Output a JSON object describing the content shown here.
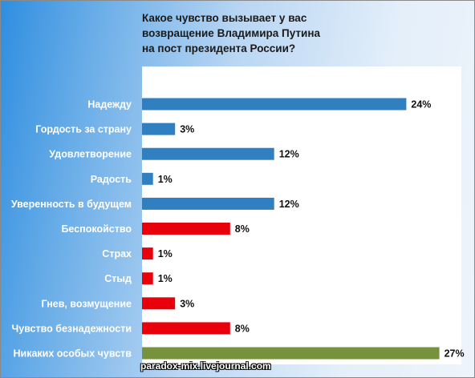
{
  "chart_data": {
    "type": "bar",
    "orientation": "horizontal",
    "title_lines": [
      "Какое чувство вызывает у вас",
      "возвращение Владимира Путина",
      "на пост президента России?"
    ],
    "categories": [
      "Надежду",
      "Гордость за страну",
      "Удовлетворение",
      "Радость",
      "Уверенность в будущем",
      "Беспокойство",
      "Страх",
      "Стыд",
      "Гнев, возмущение",
      "Чувство безнадежности",
      "Никаких особых чувств"
    ],
    "values": [
      24,
      3,
      12,
      1,
      12,
      8,
      1,
      1,
      3,
      8,
      27
    ],
    "value_labels": [
      "24%",
      "3%",
      "12%",
      "1%",
      "12%",
      "8%",
      "1%",
      "1%",
      "3%",
      "8%",
      "27%"
    ],
    "bar_colors": [
      "#2f7fc1",
      "#2f7fc1",
      "#2f7fc1",
      "#2f7fc1",
      "#2f7fc1",
      "#e8000b",
      "#e8000b",
      "#e8000b",
      "#e8000b",
      "#e8000b",
      "#76923c"
    ],
    "xlim": [
      0,
      29
    ],
    "grid": false,
    "legend": "none"
  },
  "watermark": "paradox-mix.livejournal.com"
}
